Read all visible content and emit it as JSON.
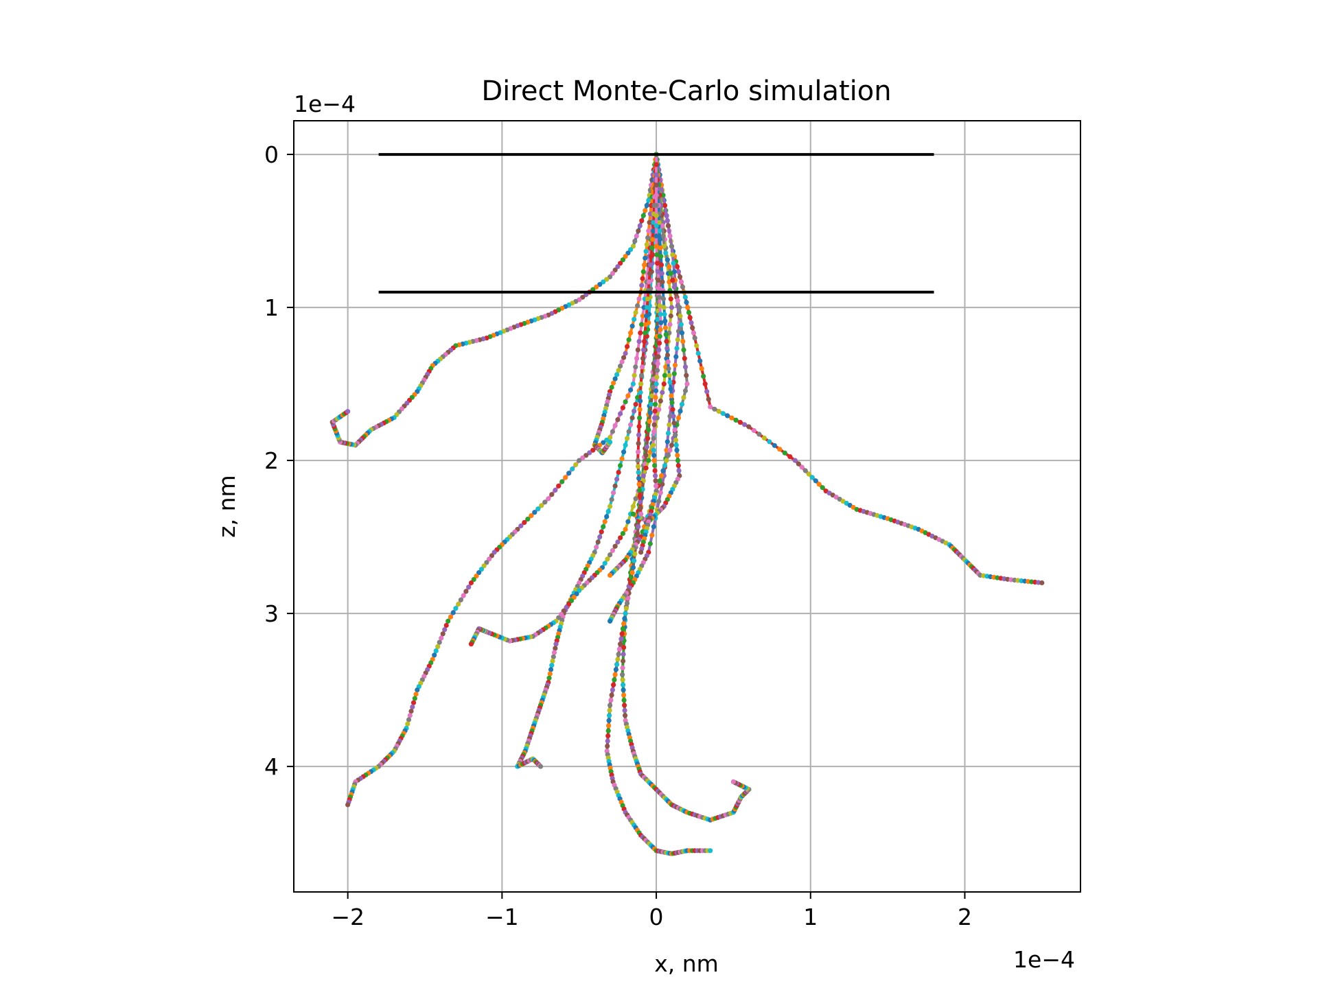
{
  "chart_data": {
    "type": "line",
    "title": "Direct Monte-Carlo simulation",
    "xlabel": "x, nm",
    "ylabel": "z, nm",
    "x_offset_text": "1e−4",
    "y_offset_text": "1e−4",
    "x_scale_factor": 0.0001,
    "y_scale_factor": 0.0001,
    "xlim": [
      -2.35,
      2.75
    ],
    "ylim": [
      4.82,
      -0.22
    ],
    "y_inverted": true,
    "x_ticks": [
      -2,
      -1,
      0,
      1,
      2
    ],
    "x_tick_labels": [
      "−2",
      "−1",
      "0",
      "1",
      "2"
    ],
    "y_ticks": [
      0,
      1,
      2,
      3,
      4
    ],
    "y_tick_labels": [
      "0",
      "1",
      "2",
      "3",
      "4"
    ],
    "grid": true,
    "legend": "none",
    "palette": [
      "#1f77b4",
      "#ff7f0e",
      "#2ca02c",
      "#d62728",
      "#9467bd",
      "#8c564b",
      "#e377c2",
      "#7f7f7f",
      "#bcbd22",
      "#17becf"
    ],
    "boundary_lines": [
      {
        "x": [
          -1.8,
          1.8
        ],
        "y": [
          0,
          0
        ],
        "color": "#000000"
      },
      {
        "x": [
          -1.8,
          1.8
        ],
        "y": [
          0.9,
          0.9
        ],
        "color": "#000000"
      }
    ],
    "series": [
      {
        "x": [
          0,
          -0.05,
          -0.15,
          -0.3,
          -0.5,
          -0.7,
          -0.9,
          -1.1,
          -1.3,
          -1.45,
          -1.55,
          -1.7,
          -1.85,
          -1.95,
          -2.05,
          -2.1,
          -2.0
        ],
        "y": [
          0,
          0.3,
          0.6,
          0.8,
          0.95,
          1.05,
          1.12,
          1.2,
          1.25,
          1.38,
          1.55,
          1.72,
          1.8,
          1.9,
          1.88,
          1.75,
          1.68
        ]
      },
      {
        "x": [
          0,
          0.05,
          0.1,
          0.18,
          0.25,
          0.35,
          0.6,
          0.9,
          1.1,
          1.3,
          1.5,
          1.7,
          1.9,
          2.0,
          2.1,
          2.3,
          2.5
        ],
        "y": [
          0,
          0.3,
          0.6,
          0.9,
          1.2,
          1.65,
          1.78,
          2.0,
          2.2,
          2.32,
          2.38,
          2.45,
          2.55,
          2.65,
          2.75,
          2.78,
          2.8
        ]
      },
      {
        "x": [
          0,
          -0.03,
          -0.08,
          -0.15,
          -0.3,
          -0.5,
          -0.7,
          -0.9,
          -1.05,
          -1.2,
          -1.35,
          -1.45,
          -1.55,
          -1.62,
          -1.7,
          -1.8,
          -1.95,
          -2.0
        ],
        "y": [
          0,
          0.5,
          1.0,
          1.5,
          1.85,
          2.0,
          2.25,
          2.45,
          2.6,
          2.8,
          3.05,
          3.3,
          3.5,
          3.75,
          3.9,
          4.0,
          4.1,
          4.25
        ]
      },
      {
        "x": [
          0,
          -0.02,
          -0.05,
          -0.1,
          -0.2,
          -0.3,
          -0.4,
          -0.5,
          -0.6,
          -0.65,
          -0.7,
          -0.75,
          -0.8,
          -0.85,
          -0.9,
          -0.8,
          -0.75
        ],
        "y": [
          0,
          0.6,
          1.1,
          1.5,
          1.9,
          2.3,
          2.6,
          2.8,
          3.0,
          3.2,
          3.45,
          3.6,
          3.75,
          3.9,
          4.0,
          3.95,
          4.0
        ]
      },
      {
        "x": [
          0,
          0.01,
          0.0,
          -0.05,
          -0.1,
          -0.15,
          -0.2,
          -0.22,
          -0.2,
          -0.15,
          -0.1,
          0.0,
          0.1,
          0.2,
          0.35,
          0.5,
          0.55,
          0.6,
          0.5
        ],
        "y": [
          0,
          0.7,
          1.2,
          1.7,
          2.2,
          2.6,
          3.0,
          3.4,
          3.7,
          3.9,
          4.05,
          4.15,
          4.25,
          4.3,
          4.35,
          4.3,
          4.2,
          4.15,
          4.1
        ]
      },
      {
        "x": [
          0,
          0.02,
          0.0,
          -0.05,
          -0.1,
          -0.15,
          -0.2,
          -0.25,
          -0.3,
          -0.32,
          -0.28,
          -0.2,
          -0.1,
          0.0,
          0.1,
          0.2,
          0.35
        ],
        "y": [
          0,
          0.8,
          1.3,
          1.8,
          2.3,
          2.7,
          3.0,
          3.3,
          3.6,
          3.9,
          4.1,
          4.3,
          4.45,
          4.55,
          4.57,
          4.55,
          4.55
        ]
      },
      {
        "x": [
          0,
          0.05,
          0.1,
          0.05,
          -0.05,
          -0.2,
          -0.35,
          -0.5,
          -0.65,
          -0.8,
          -0.95,
          -1.1,
          -1.15,
          -1.2
        ],
        "y": [
          0,
          0.5,
          1.0,
          1.5,
          2.0,
          2.45,
          2.7,
          2.85,
          3.05,
          3.15,
          3.18,
          3.12,
          3.1,
          3.2
        ]
      },
      {
        "x": [
          0,
          -0.05,
          -0.1,
          -0.2,
          -0.3,
          -0.35,
          -0.4,
          -0.35,
          -0.3
        ],
        "y": [
          0,
          0.5,
          0.9,
          1.3,
          1.55,
          1.75,
          1.9,
          1.95,
          1.88
        ]
      },
      {
        "x": [
          0,
          0.1,
          0.15,
          0.1,
          0.05,
          -0.05,
          -0.15,
          -0.25,
          -0.3
        ],
        "y": [
          0,
          0.6,
          1.1,
          1.6,
          2.1,
          2.6,
          2.8,
          2.95,
          3.05
        ]
      },
      {
        "x": [
          0,
          0.05,
          0.15,
          0.2,
          0.1,
          0.0,
          -0.1,
          -0.2,
          -0.3
        ],
        "y": [
          0,
          0.6,
          1.0,
          1.5,
          1.9,
          2.2,
          2.5,
          2.65,
          2.75
        ]
      },
      {
        "x": [
          0,
          0.02,
          0.05,
          0.08,
          0.12,
          0.15,
          0.05,
          -0.05,
          -0.15
        ],
        "y": [
          0,
          0.5,
          1.0,
          1.4,
          1.8,
          2.1,
          2.3,
          2.4,
          2.35
        ]
      },
      {
        "x": [
          0,
          -0.02,
          -0.06,
          -0.1,
          -0.12,
          -0.1
        ],
        "y": [
          0,
          0.5,
          1.0,
          1.5,
          2.0,
          2.35
        ]
      },
      {
        "x": [
          0,
          0.0,
          0.03,
          0.0,
          -0.02,
          0.0,
          -0.05,
          -0.1
        ],
        "y": [
          0,
          0.6,
          1.1,
          1.5,
          1.9,
          2.2,
          2.4,
          2.6
        ]
      }
    ]
  }
}
